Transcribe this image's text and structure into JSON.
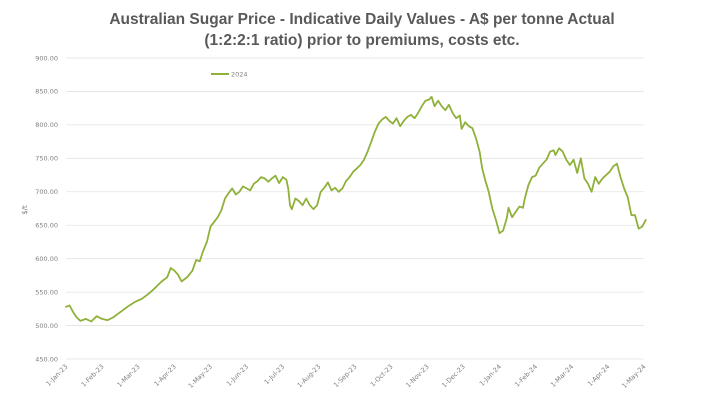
{
  "chart_data": {
    "type": "line",
    "title_lines": [
      "Australian Sugar Price - Indicative Daily Values - A$ per tonne Actual",
      "(1:2:2:1 ratio) prior to premiums, costs etc."
    ],
    "ylabel": "$/t",
    "xlabel": "",
    "ylim": [
      450,
      900
    ],
    "y_ticks": [
      450,
      500,
      550,
      600,
      650,
      700,
      750,
      800,
      850,
      900
    ],
    "y_tick_labels": [
      "450.00",
      "500.00",
      "550.00",
      "600.00",
      "650.00",
      "700.00",
      "750.00",
      "800.00",
      "850.00",
      "900.00"
    ],
    "x_tick_labels": [
      "1-Jan-23",
      "1-Feb-23",
      "1-Mar-23",
      "1-Apr-23",
      "1-May-23",
      "1-Jun-23",
      "1-Jul-23",
      "1-Aug-23",
      "1-Sep-23",
      "1-Oct-23",
      "1-Nov-23",
      "1-Dec-23",
      "1-Jan-24",
      "1-Feb-24",
      "1-Mar-24",
      "1-Apr-24",
      "1-May-24"
    ],
    "x_unit": "months since 1-Jan-23",
    "xlim": [
      0,
      16
    ],
    "grid": true,
    "legend_position": "top-left",
    "series": [
      {
        "name": "2024",
        "color": "#8fb13a",
        "points": [
          [
            0.0,
            528
          ],
          [
            0.1,
            530
          ],
          [
            0.2,
            520
          ],
          [
            0.3,
            512
          ],
          [
            0.4,
            507
          ],
          [
            0.55,
            510
          ],
          [
            0.7,
            506
          ],
          [
            0.85,
            514
          ],
          [
            1.0,
            510
          ],
          [
            1.15,
            508
          ],
          [
            1.3,
            512
          ],
          [
            1.5,
            520
          ],
          [
            1.7,
            528
          ],
          [
            1.9,
            535
          ],
          [
            2.1,
            540
          ],
          [
            2.3,
            548
          ],
          [
            2.5,
            558
          ],
          [
            2.65,
            566
          ],
          [
            2.8,
            572
          ],
          [
            2.9,
            586
          ],
          [
            3.0,
            582
          ],
          [
            3.1,
            576
          ],
          [
            3.2,
            566
          ],
          [
            3.35,
            572
          ],
          [
            3.5,
            582
          ],
          [
            3.6,
            598
          ],
          [
            3.7,
            596
          ],
          [
            3.8,
            612
          ],
          [
            3.9,
            625
          ],
          [
            4.0,
            648
          ],
          [
            4.1,
            655
          ],
          [
            4.2,
            662
          ],
          [
            4.3,
            672
          ],
          [
            4.4,
            690
          ],
          [
            4.5,
            698
          ],
          [
            4.6,
            705
          ],
          [
            4.7,
            696
          ],
          [
            4.8,
            700
          ],
          [
            4.9,
            708
          ],
          [
            5.0,
            705
          ],
          [
            5.1,
            702
          ],
          [
            5.2,
            712
          ],
          [
            5.3,
            716
          ],
          [
            5.4,
            722
          ],
          [
            5.5,
            720
          ],
          [
            5.6,
            715
          ],
          [
            5.7,
            720
          ],
          [
            5.8,
            724
          ],
          [
            5.9,
            713
          ],
          [
            6.0,
            722
          ],
          [
            6.1,
            718
          ],
          [
            6.15,
            705
          ],
          [
            6.2,
            680
          ],
          [
            6.25,
            674
          ],
          [
            6.35,
            690
          ],
          [
            6.45,
            686
          ],
          [
            6.55,
            680
          ],
          [
            6.65,
            690
          ],
          [
            6.75,
            680
          ],
          [
            6.85,
            674
          ],
          [
            6.95,
            680
          ],
          [
            7.05,
            700
          ],
          [
            7.15,
            706
          ],
          [
            7.25,
            714
          ],
          [
            7.35,
            702
          ],
          [
            7.45,
            706
          ],
          [
            7.55,
            700
          ],
          [
            7.65,
            705
          ],
          [
            7.75,
            716
          ],
          [
            7.85,
            722
          ],
          [
            7.95,
            730
          ],
          [
            8.05,
            735
          ],
          [
            8.15,
            740
          ],
          [
            8.25,
            748
          ],
          [
            8.35,
            760
          ],
          [
            8.45,
            775
          ],
          [
            8.55,
            790
          ],
          [
            8.65,
            802
          ],
          [
            8.75,
            808
          ],
          [
            8.85,
            812
          ],
          [
            8.95,
            806
          ],
          [
            9.05,
            802
          ],
          [
            9.15,
            810
          ],
          [
            9.25,
            798
          ],
          [
            9.35,
            806
          ],
          [
            9.45,
            812
          ],
          [
            9.55,
            815
          ],
          [
            9.65,
            810
          ],
          [
            9.75,
            818
          ],
          [
            9.85,
            828
          ],
          [
            9.95,
            836
          ],
          [
            10.05,
            838
          ],
          [
            10.12,
            842
          ],
          [
            10.2,
            828
          ],
          [
            10.3,
            836
          ],
          [
            10.4,
            828
          ],
          [
            10.5,
            822
          ],
          [
            10.6,
            830
          ],
          [
            10.7,
            818
          ],
          [
            10.8,
            810
          ],
          [
            10.9,
            814
          ],
          [
            10.95,
            794
          ],
          [
            11.05,
            804
          ],
          [
            11.15,
            798
          ],
          [
            11.25,
            795
          ],
          [
            11.35,
            780
          ],
          [
            11.45,
            760
          ],
          [
            11.52,
            735
          ],
          [
            11.6,
            718
          ],
          [
            11.7,
            700
          ],
          [
            11.8,
            675
          ],
          [
            11.9,
            658
          ],
          [
            12.0,
            638
          ],
          [
            12.1,
            642
          ],
          [
            12.2,
            660
          ],
          [
            12.25,
            676
          ],
          [
            12.35,
            662
          ],
          [
            12.45,
            670
          ],
          [
            12.55,
            678
          ],
          [
            12.65,
            676
          ],
          [
            12.7,
            690
          ],
          [
            12.8,
            710
          ],
          [
            12.9,
            722
          ],
          [
            13.0,
            724
          ],
          [
            13.1,
            736
          ],
          [
            13.2,
            742
          ],
          [
            13.3,
            748
          ],
          [
            13.4,
            760
          ],
          [
            13.5,
            762
          ],
          [
            13.55,
            755
          ],
          [
            13.65,
            765
          ],
          [
            13.75,
            760
          ],
          [
            13.85,
            748
          ],
          [
            13.95,
            740
          ],
          [
            14.05,
            748
          ],
          [
            14.15,
            728
          ],
          [
            14.25,
            750
          ],
          [
            14.35,
            720
          ],
          [
            14.45,
            712
          ],
          [
            14.55,
            700
          ],
          [
            14.65,
            722
          ],
          [
            14.75,
            712
          ],
          [
            14.85,
            720
          ],
          [
            14.95,
            725
          ],
          [
            15.05,
            730
          ],
          [
            15.15,
            738
          ],
          [
            15.25,
            742
          ],
          [
            15.35,
            722
          ],
          [
            15.45,
            705
          ],
          [
            15.55,
            692
          ],
          [
            15.65,
            665
          ],
          [
            15.75,
            665
          ],
          [
            15.85,
            645
          ],
          [
            15.95,
            648
          ],
          [
            16.05,
            658
          ]
        ]
      }
    ]
  }
}
